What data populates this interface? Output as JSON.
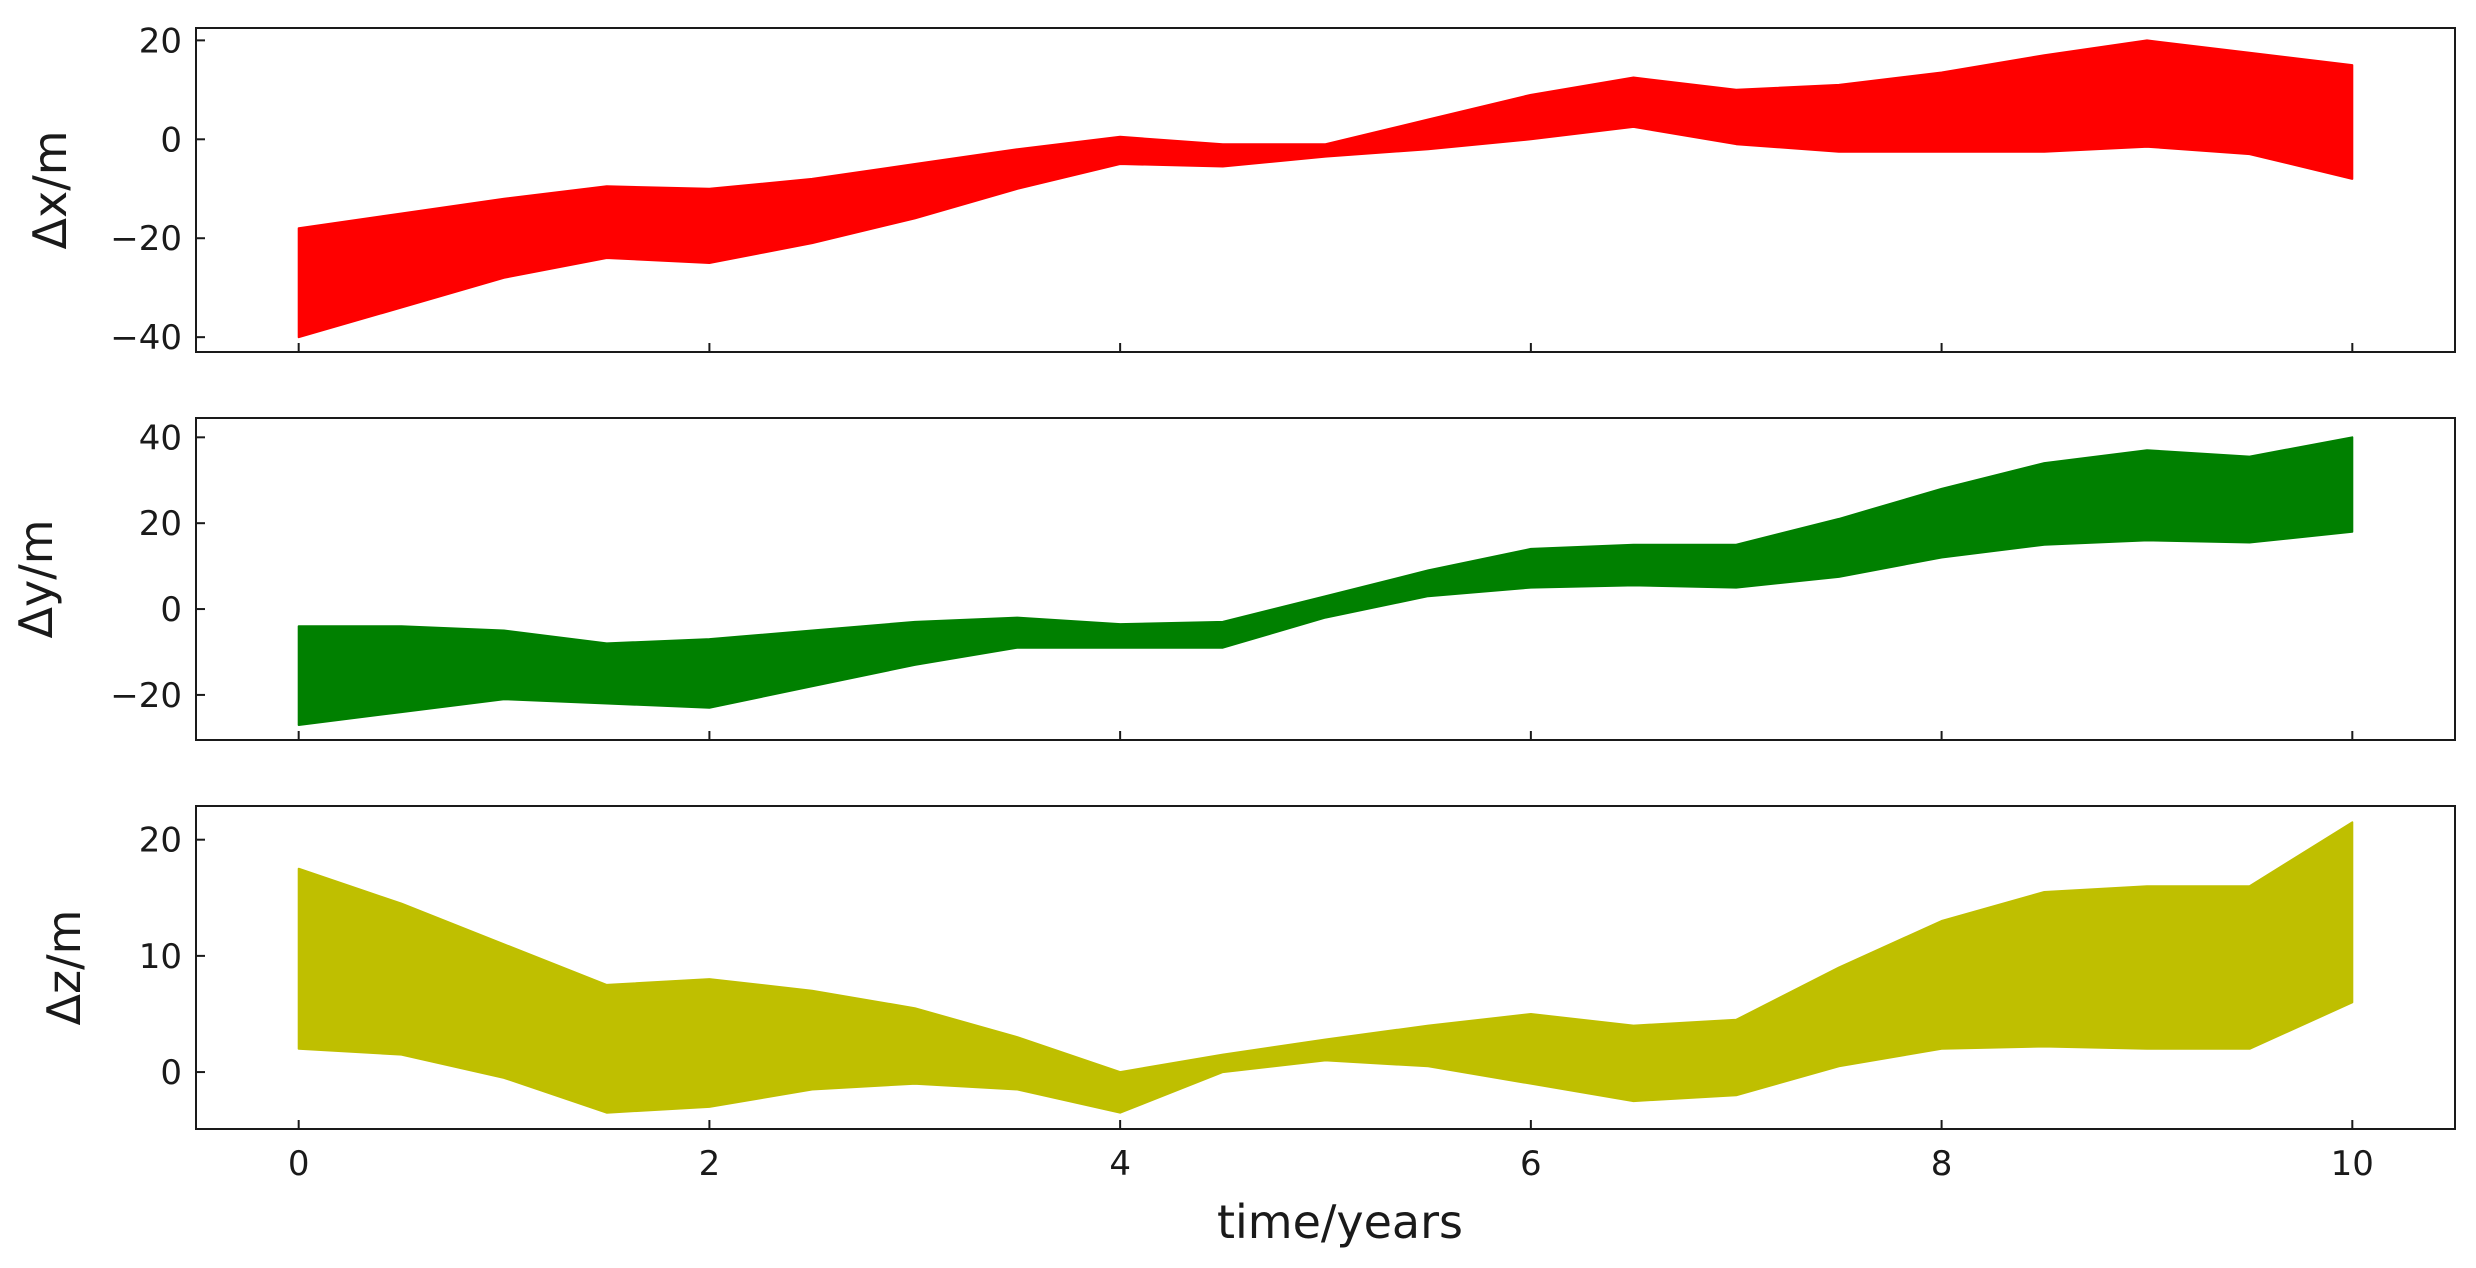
{
  "chart_data": [
    {
      "type": "area",
      "ylabel": "Δx/m",
      "xlim": [
        -0.5,
        10.5
      ],
      "ylim": [
        -43,
        22.5
      ],
      "yticks": [
        20,
        0,
        -20,
        -40
      ],
      "ytick_labels": [
        "20",
        "0",
        "−20",
        "−40"
      ],
      "color": "#ff0000",
      "x": [
        0,
        0.5,
        1,
        1.5,
        2,
        2.5,
        3,
        3.5,
        4,
        4.5,
        5,
        5.5,
        6,
        6.5,
        7,
        7.5,
        8,
        8.5,
        9,
        9.5,
        10
      ],
      "upper": [
        -18,
        -15,
        -12,
        -9.5,
        -10,
        -8,
        -5,
        -2,
        0.5,
        -1,
        -1,
        4,
        9,
        12.5,
        10,
        11,
        13.5,
        17,
        20,
        17.5,
        15
      ],
      "lower": [
        -40,
        -34,
        -28,
        -24,
        -25,
        -21,
        -16,
        -10,
        -5,
        -5.5,
        -3.5,
        -2,
        0,
        2.5,
        -1,
        -2.5,
        -2.5,
        -2.5,
        -1.5,
        -3,
        -8
      ]
    },
    {
      "type": "area",
      "ylabel": "Δy/m",
      "xlim": [
        -0.5,
        10.5
      ],
      "ylim": [
        -30.5,
        44.5
      ],
      "yticks": [
        40,
        20,
        0,
        -20
      ],
      "ytick_labels": [
        "40",
        "20",
        "0",
        "−20"
      ],
      "color": "#008000",
      "x": [
        0,
        0.5,
        1,
        1.5,
        2,
        2.5,
        3,
        3.5,
        4,
        4.5,
        5,
        5.5,
        6,
        6.5,
        7,
        7.5,
        8,
        8.5,
        9,
        9.5,
        10
      ],
      "upper": [
        -4,
        -4,
        -5,
        -8,
        -7,
        -5,
        -3,
        -2,
        -3.5,
        -3,
        3,
        9,
        14,
        15,
        15,
        21,
        28,
        34,
        37,
        35.5,
        40
      ],
      "lower": [
        -27,
        -24,
        -21,
        -22,
        -23,
        -18,
        -13,
        -9,
        -9,
        -9,
        -2,
        3,
        5,
        5.5,
        5,
        7.5,
        12,
        15,
        16,
        15.5,
        18
      ]
    },
    {
      "type": "area",
      "ylabel": "Δz/m",
      "xlabel": "time/years",
      "xlim": [
        -0.5,
        10.5
      ],
      "ylim": [
        -4.9,
        22.9
      ],
      "yticks": [
        20,
        10,
        0
      ],
      "ytick_labels": [
        "20",
        "10",
        "0"
      ],
      "xticks": [
        0,
        2,
        4,
        6,
        8,
        10
      ],
      "xtick_labels": [
        "0",
        "2",
        "4",
        "6",
        "8",
        "10"
      ],
      "color": "#bfbf00",
      "x": [
        0,
        0.5,
        1,
        1.5,
        2,
        2.5,
        3,
        3.5,
        4,
        4.5,
        5,
        5.5,
        6,
        6.5,
        7,
        7.5,
        8,
        8.5,
        9,
        9.5,
        10
      ],
      "upper": [
        17.5,
        14.5,
        11,
        7.5,
        8,
        7,
        5.5,
        3,
        0,
        1.5,
        2.8,
        4,
        5,
        4,
        4.5,
        9,
        13,
        15.5,
        16,
        16,
        21.5
      ],
      "lower": [
        2,
        1.5,
        -0.5,
        -3.5,
        -3,
        -1.5,
        -1,
        -1.5,
        -3.5,
        0,
        1,
        0.5,
        -1,
        -2.5,
        -2,
        0.5,
        2,
        2.2,
        2,
        2,
        6
      ]
    }
  ]
}
